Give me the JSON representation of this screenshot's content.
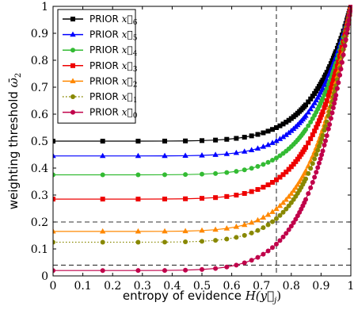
{
  "chart_data": {
    "type": "line",
    "xlabel": "entropy of evidence",
    "xlabel_math": "H(y⃗",
    "xlabel_sub": "j",
    "ylabel": "weighting threshold",
    "ylabel_math": "ω̄",
    "ylabel_sub": "2",
    "xlim": [
      0,
      1
    ],
    "ylim": [
      0,
      1
    ],
    "x_ticks": [
      0,
      0.1,
      0.2,
      0.3,
      0.4,
      0.5,
      0.6,
      0.7,
      0.8,
      0.9,
      1
    ],
    "x_tick_labels": [
      "0",
      "0.1",
      "0.2",
      "0.3",
      "0.4",
      "0.5",
      "0.6",
      "0.7",
      "0.8",
      "0.9",
      "1"
    ],
    "y_ticks": [
      0,
      0.1,
      0.2,
      0.3,
      0.4,
      0.5,
      0.6,
      0.7,
      0.8,
      0.9,
      1
    ],
    "y_tick_labels": [
      "0",
      "0.1",
      "0.2",
      "0.3",
      "0.4",
      "0.5",
      "0.6",
      "0.7",
      "0.8",
      "0.9",
      "1"
    ],
    "legend_position": "top-left",
    "reference_lines": [
      {
        "orientation": "vertical",
        "value": 0.75,
        "style": "dashed"
      },
      {
        "orientation": "horizontal",
        "value": 0.2,
        "style": "dashed"
      },
      {
        "orientation": "horizontal",
        "value": 0.04,
        "style": "dashed"
      }
    ],
    "series": [
      {
        "name": "PRIOR",
        "sub": "6",
        "color": "#000000",
        "marker": "square",
        "line": "solid",
        "start": 0.5
      },
      {
        "name": "PRIOR",
        "sub": "5",
        "color": "#0000ff",
        "marker": "triangle",
        "line": "solid",
        "start": 0.445
      },
      {
        "name": "PRIOR",
        "sub": "4",
        "color": "#33bb33",
        "marker": "circle",
        "line": "solid",
        "start": 0.375
      },
      {
        "name": "PRIOR",
        "sub": "3",
        "color": "#ee0000",
        "marker": "square",
        "line": "solid",
        "start": 0.285
      },
      {
        "name": "PRIOR",
        "sub": "2",
        "color": "#ff8800",
        "marker": "triangle",
        "line": "solid",
        "start": 0.165
      },
      {
        "name": "PRIOR",
        "sub": "1",
        "color": "#888800",
        "marker": "circle",
        "line": "dotted",
        "start": 0.125
      },
      {
        "name": "PRIOR",
        "sub": "0",
        "color": "#c0004a",
        "marker": "circle",
        "line": "solid",
        "start": 0.02
      }
    ],
    "x": [
      0,
      0.1667,
      0.2857,
      0.375,
      0.4444,
      0.5,
      0.5455,
      0.5833,
      0.6154,
      0.6429,
      0.6667,
      0.6875,
      0.7059,
      0.7222,
      0.7368,
      0.75,
      0.7619,
      0.7727,
      0.7826,
      0.7917,
      0.8,
      0.8077,
      0.8148,
      0.8214,
      0.8276,
      0.8333,
      0.8387,
      0.8438,
      0.8485,
      0.8571,
      0.8649,
      0.8718,
      0.878,
      0.8837,
      0.8889,
      0.8936,
      0.898,
      0.902,
      0.9057,
      0.9111,
      0.9149,
      0.9194,
      0.925,
      0.9286,
      0.9333,
      0.9375,
      0.9412,
      0.9444,
      0.9474,
      0.95,
      0.9545,
      0.9583,
      0.963,
      0.9667,
      0.9706,
      0.975,
      0.98,
      0.9833,
      0.9867,
      0.9889,
      0.9911,
      0.9933,
      0.9956,
      0.9978,
      1
    ]
  }
}
